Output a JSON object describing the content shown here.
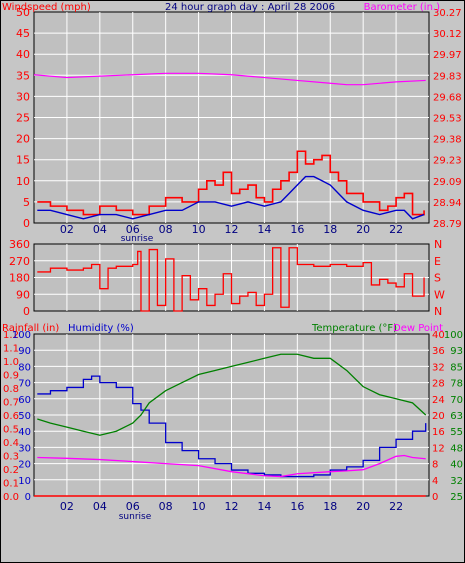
{
  "colors": {
    "background": "#c6c6c6",
    "plot_bg": "#c0c0c0",
    "grid": "#ffffff",
    "frame": "#000000",
    "wind": "#ff0000",
    "gust": "#ff0000",
    "avg_wind": "#0000cc",
    "barometer": "#ff00ff",
    "direction": "#ff0000",
    "humidity": "#0000cc",
    "temperature": "#008000",
    "dewpoint": "#ff00ff",
    "rain": "#ff0000",
    "title": "#000080"
  },
  "chart_data": [
    {
      "type": "line",
      "title": "24 hour graph day : April 28 2006",
      "ylabel_left": "Windspeed (mph)",
      "ylabel_right": "Barometer (in.)",
      "x_ticks": [
        "02",
        "04",
        "06",
        "08",
        "10",
        "12",
        "14",
        "16",
        "18",
        "20",
        "22"
      ],
      "x_annotation": "sunrise",
      "ylim": [
        0,
        50
      ],
      "y_ticks": [
        "0",
        "5",
        "10",
        "15",
        "20",
        "25",
        "30",
        "35",
        "40",
        "45",
        "50"
      ],
      "ylim_right": [
        28.79,
        30.27
      ],
      "y_ticks_right": [
        "28.79",
        "28.94",
        "29.09",
        "29.23",
        "29.38",
        "29.53",
        "29.68",
        "29.83",
        "29.97",
        "30.12",
        "30.27"
      ],
      "series": [
        {
          "name": "Gust",
          "x": [
            0.2,
            1,
            2,
            3,
            4,
            5,
            6,
            7,
            8,
            9,
            10,
            10.5,
            11,
            11.5,
            12,
            12.5,
            13,
            13.5,
            14,
            14.5,
            15,
            15.5,
            16,
            16.5,
            17,
            17.5,
            18,
            18.5,
            19,
            20,
            21,
            21.5,
            22,
            22.5,
            23,
            23.7
          ],
          "values": [
            5,
            4,
            3,
            2,
            4,
            3,
            2,
            4,
            6,
            5,
            8,
            10,
            9,
            12,
            7,
            8,
            9,
            6,
            5,
            8,
            10,
            12,
            17,
            14,
            15,
            16,
            12,
            10,
            7,
            5,
            3,
            4,
            6,
            7,
            2,
            3
          ]
        },
        {
          "name": "Average",
          "x": [
            0.2,
            1,
            2,
            3,
            4,
            5,
            6,
            7,
            8,
            9,
            10,
            11,
            12,
            13,
            14,
            15,
            15.5,
            16,
            16.5,
            17,
            17.5,
            18,
            18.5,
            19,
            20,
            21,
            22,
            22.5,
            23,
            23.7
          ],
          "values": [
            3,
            3,
            2,
            1,
            2,
            2,
            1,
            2,
            3,
            3,
            5,
            5,
            4,
            5,
            4,
            5,
            7,
            9,
            11,
            11,
            10,
            9,
            7,
            5,
            3,
            2,
            3,
            3,
            1,
            2
          ]
        },
        {
          "name": "Barometer",
          "x": [
            0,
            2,
            4,
            6,
            8,
            10,
            12,
            14,
            16,
            18,
            19,
            20,
            22,
            23.8
          ],
          "values": [
            29.83,
            29.81,
            29.82,
            29.83,
            29.84,
            29.84,
            29.83,
            29.81,
            29.79,
            29.77,
            29.76,
            29.76,
            29.78,
            29.79
          ]
        }
      ]
    },
    {
      "type": "line",
      "title": "",
      "ylim": [
        0,
        360
      ],
      "y_ticks": [
        "0",
        "90",
        "180",
        "270",
        "360"
      ],
      "y_ticks_right": [
        "N",
        "W",
        "S",
        "E",
        "N"
      ],
      "series": [
        {
          "name": "Direction",
          "x": [
            0.2,
            1,
            2,
            3,
            3.5,
            4,
            4.5,
            5,
            6,
            6.3,
            6.5,
            7,
            7.5,
            8,
            8.5,
            9,
            9.5,
            10,
            10.5,
            11,
            11.5,
            12,
            12.5,
            13,
            13.5,
            14,
            14.5,
            15,
            15.5,
            16,
            17,
            18,
            19,
            20,
            20.5,
            21,
            21.5,
            22,
            22.5,
            23,
            23.7
          ],
          "values": [
            210,
            230,
            220,
            230,
            250,
            120,
            230,
            240,
            250,
            320,
            0,
            330,
            30,
            280,
            0,
            190,
            60,
            120,
            30,
            90,
            200,
            40,
            80,
            100,
            30,
            90,
            340,
            20,
            340,
            250,
            240,
            250,
            240,
            260,
            140,
            170,
            150,
            130,
            200,
            80,
            180
          ]
        }
      ]
    },
    {
      "type": "line",
      "title": "",
      "ylabel_left_1": "Rainfall (in)",
      "ylabel_left_2": "Humidity (%)",
      "ylabel_right_1": "Temperature (°F)",
      "ylabel_right_2": "Dew Point",
      "x_ticks": [
        "02",
        "04",
        "06",
        "08",
        "10",
        "12",
        "14",
        "16",
        "18",
        "20",
        "22"
      ],
      "x_annotation": "sunrise",
      "y_ticks_rain": [
        "0.0",
        "0.1",
        "0.2",
        "0.3",
        "0.4",
        "0.5",
        "0.6",
        "0.7",
        "0.8",
        "0.9",
        "1.0",
        "1.1",
        "1.2"
      ],
      "y_ticks_humidity": [
        "0",
        "10",
        "20",
        "30",
        "40",
        "50",
        "60",
        "70",
        "80",
        "90",
        "100"
      ],
      "y_ticks_right_inner": [
        "0",
        "4",
        "8",
        "12",
        "16",
        "20",
        "24",
        "28",
        "32",
        "36",
        "40"
      ],
      "y_ticks_right_outer": [
        "25",
        "32",
        "40",
        "48",
        "55",
        "63",
        "70",
        "78",
        "85",
        "93",
        "100"
      ],
      "ylim": [
        0,
        100
      ],
      "series": [
        {
          "name": "Humidity",
          "x": [
            0.2,
            1,
            2,
            3,
            3.5,
            4,
            5,
            6,
            6.5,
            7,
            8,
            9,
            10,
            11,
            12,
            13,
            14,
            15,
            16,
            17,
            18,
            19,
            20,
            21,
            22,
            23,
            23.8
          ],
          "values": [
            63,
            65,
            67,
            72,
            74,
            70,
            67,
            57,
            53,
            45,
            33,
            28,
            23,
            20,
            16,
            14,
            13,
            12,
            12,
            13,
            16,
            18,
            22,
            30,
            35,
            40,
            45
          ]
        },
        {
          "name": "Temperature",
          "x": [
            0.2,
            1,
            2,
            3,
            4,
            5,
            6,
            6.5,
            7,
            8,
            9,
            10,
            11,
            12,
            13,
            14,
            15,
            16,
            17,
            18,
            19,
            20,
            21,
            22,
            23,
            23.8
          ],
          "values": [
            19,
            18,
            17,
            16,
            15,
            16,
            18,
            20,
            23,
            26,
            28,
            30,
            31,
            32,
            33,
            34,
            35,
            35,
            34,
            34,
            31,
            27,
            25,
            24,
            23,
            20
          ]
        },
        {
          "name": "Dew Point",
          "x": [
            0.2,
            2,
            4,
            6,
            8,
            10,
            12,
            14,
            15,
            16,
            18,
            19,
            20,
            21,
            22,
            22.5,
            23,
            23.8
          ],
          "values": [
            9.5,
            9.3,
            9,
            8.5,
            8,
            7.5,
            6,
            5,
            4.8,
            5.5,
            6,
            6.2,
            6.5,
            8,
            9.8,
            10,
            9.5,
            9.2
          ]
        },
        {
          "name": "Rainfall",
          "x": [
            0,
            23.8
          ],
          "values": [
            0,
            0
          ]
        }
      ]
    }
  ]
}
